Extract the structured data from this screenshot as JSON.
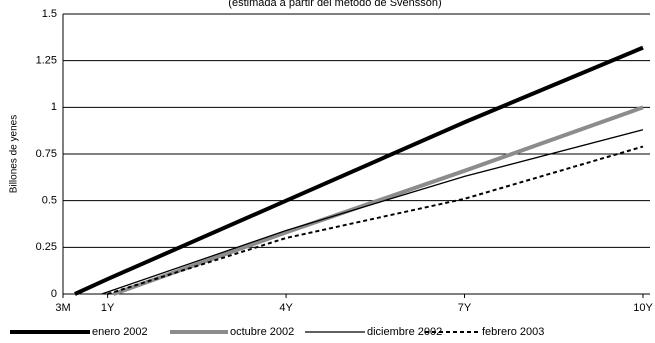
{
  "chart_data": {
    "type": "line",
    "subtitle": "(estimada a partir del método de Svensson)",
    "y_label": "Billones de yenes",
    "xlim": [
      0.25,
      10
    ],
    "xticks": [
      {
        "value": 0.25,
        "label": "3M"
      },
      {
        "value": 1,
        "label": "1Y"
      },
      {
        "value": 4,
        "label": "4Y"
      },
      {
        "value": 7,
        "label": "7Y"
      },
      {
        "value": 10,
        "label": "10Y"
      }
    ],
    "ylim": [
      0,
      1.5
    ],
    "yticks": [
      0,
      0.25,
      0.5,
      0.75,
      1,
      1.25,
      1.5
    ],
    "grid": true,
    "legend": "bottom",
    "series": [
      {
        "name": "enero 2002",
        "color": "#000000",
        "width": 4,
        "dash": "solid",
        "x": [
          0.45,
          1,
          4,
          7,
          10
        ],
        "values": [
          0,
          0.08,
          0.5,
          0.92,
          1.32
        ]
      },
      {
        "name": "octubre 2002",
        "color": "#8c8c8c",
        "width": 4,
        "dash": "solid",
        "x": [
          1.1,
          4,
          7,
          10
        ],
        "values": [
          0,
          0.33,
          0.66,
          1.0
        ]
      },
      {
        "name": "diciembre 2002",
        "color": "#000000",
        "width": 1.3,
        "dash": "solid",
        "x": [
          0.9,
          4,
          7,
          10
        ],
        "values": [
          0,
          0.34,
          0.63,
          0.88
        ]
      },
      {
        "name": "febrero 2003",
        "color": "#000000",
        "width": 2,
        "dash": "dotted",
        "x": [
          1,
          4,
          7,
          10
        ],
        "values": [
          0,
          0.3,
          0.51,
          0.79
        ]
      }
    ]
  }
}
